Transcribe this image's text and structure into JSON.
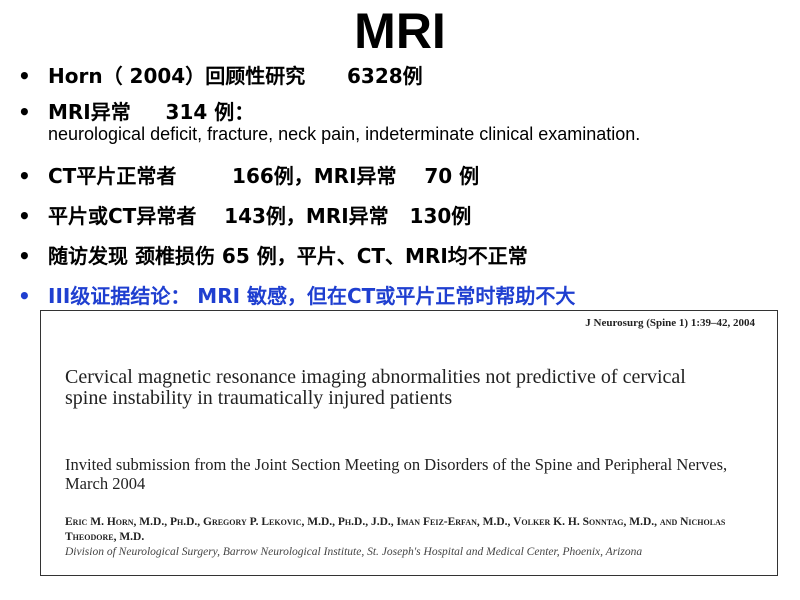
{
  "title": "MRI",
  "bullets": [
    "Horn（ 2004）回顾性研究      6328例",
    "MRI异常     314 例：",
    "CT平片正常者        166例，MRI异常    70 例",
    "平片或CT异常者    143例，MRI异常   130例",
    "随访发现 颈椎损伤 65 例，平片、CT、MRI均不正常",
    "III级证据结论： MRI 敏感，但在CT或平片正常时帮助不大"
  ],
  "bullet2_detail": "neurological deficit, fracture, neck pain, indeterminate clinical examination.",
  "highlight_color": "#1f3fd0",
  "paper": {
    "citation": "J Neurosurg (Spine 1) 1:39–42, 2004",
    "title": "Cervical magnetic resonance imaging abnormalities not predictive of cervical spine instability in traumatically injured patients",
    "subtitle": "Invited submission from the Joint Section Meeting on Disorders of the Spine and Peripheral Nerves, March 2004",
    "authors": "Eric M. Horn, M.D., Ph.D., Gregory P. Lekovic, M.D., Ph.D., J.D., Iman Feiz-Erfan, M.D., Volker K. H. Sonntag, M.D., and Nicholas Theodore, M.D.",
    "affiliation": "Division of Neurological Surgery, Barrow Neurological Institute, St. Joseph's Hospital and Medical Center, Phoenix, Arizona"
  }
}
